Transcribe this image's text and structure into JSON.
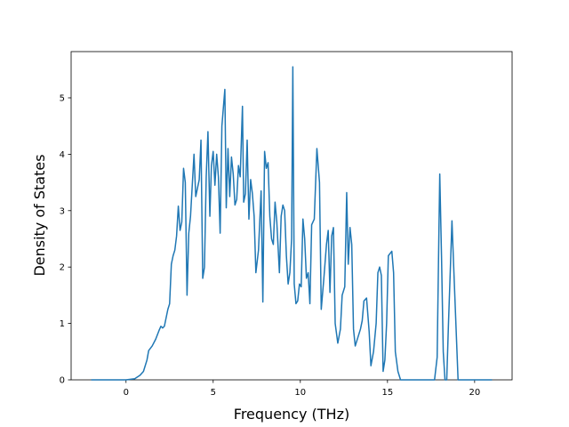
{
  "chart_data": {
    "type": "line",
    "x_label": "Frequency (THz)",
    "y_label": "Density of States",
    "xlim": [
      -3.15,
      22.15
    ],
    "ylim": [
      0,
      5.82
    ],
    "xticks": [
      0,
      5,
      10,
      15,
      20
    ],
    "yticks": [
      0,
      1,
      2,
      3,
      4,
      5
    ],
    "series": [
      {
        "color": "#1f77b4",
        "x": [
          -2,
          -1,
          0,
          0.5,
          0.8,
          1.0,
          1.2,
          1.3,
          1.5,
          1.7,
          1.9,
          2.0,
          2.1,
          2.2,
          2.3,
          2.4,
          2.5,
          2.6,
          2.7,
          2.8,
          2.9,
          3.0,
          3.1,
          3.2,
          3.3,
          3.4,
          3.5,
          3.6,
          3.7,
          3.9,
          4.0,
          4.1,
          4.2,
          4.3,
          4.4,
          4.5,
          4.6,
          4.7,
          4.81,
          4.9,
          5.0,
          5.1,
          5.2,
          5.3,
          5.4,
          5.5,
          5.67,
          5.75,
          5.85,
          5.95,
          6.05,
          6.15,
          6.25,
          6.35,
          6.45,
          6.55,
          6.68,
          6.75,
          6.85,
          6.95,
          7.05,
          7.15,
          7.25,
          7.35,
          7.45,
          7.6,
          7.75,
          7.85,
          7.95,
          8.05,
          8.15,
          8.25,
          8.35,
          8.45,
          8.55,
          8.65,
          8.8,
          8.9,
          9.0,
          9.1,
          9.2,
          9.3,
          9.4,
          9.5,
          9.57,
          9.65,
          9.75,
          9.85,
          9.95,
          10.05,
          10.15,
          10.25,
          10.35,
          10.45,
          10.55,
          10.65,
          10.8,
          10.95,
          11.1,
          11.2,
          11.35,
          11.5,
          11.6,
          11.7,
          11.8,
          11.9,
          12.0,
          12.15,
          12.3,
          12.4,
          12.55,
          12.66,
          12.75,
          12.85,
          12.95,
          13.05,
          13.15,
          13.3,
          13.45,
          13.55,
          13.65,
          13.8,
          13.95,
          14.05,
          14.2,
          14.35,
          14.45,
          14.55,
          14.65,
          14.75,
          14.85,
          14.95,
          15.05,
          15.25,
          15.35,
          15.45,
          15.6,
          15.75,
          16.5,
          17.5,
          17.7,
          17.85,
          17.95,
          18.0,
          18.1,
          18.2,
          18.3,
          18.4,
          18.5,
          18.6,
          18.7,
          18.8,
          18.95,
          19.05,
          20,
          21
        ],
        "values": [
          0,
          0,
          0,
          0.02,
          0.08,
          0.15,
          0.35,
          0.52,
          0.6,
          0.72,
          0.88,
          0.95,
          0.92,
          0.95,
          1.1,
          1.25,
          1.35,
          2.05,
          2.2,
          2.3,
          2.55,
          3.08,
          2.65,
          2.8,
          3.75,
          3.5,
          1.5,
          2.6,
          2.9,
          4.0,
          3.25,
          3.4,
          3.55,
          4.25,
          1.8,
          2.0,
          3.6,
          4.4,
          2.9,
          3.8,
          4.05,
          3.45,
          4.0,
          3.6,
          2.6,
          4.5,
          5.15,
          3.05,
          4.1,
          3.25,
          3.95,
          3.65,
          3.1,
          3.2,
          3.8,
          3.6,
          4.85,
          3.15,
          3.3,
          4.25,
          2.85,
          3.55,
          3.3,
          2.9,
          1.9,
          2.3,
          3.35,
          1.38,
          4.05,
          3.75,
          3.85,
          2.9,
          2.5,
          2.4,
          3.15,
          2.8,
          1.9,
          2.9,
          3.1,
          3.0,
          2.2,
          1.7,
          1.9,
          2.5,
          5.55,
          1.7,
          1.35,
          1.4,
          1.7,
          1.65,
          2.85,
          2.5,
          1.8,
          1.9,
          1.35,
          2.75,
          2.85,
          4.1,
          3.5,
          1.25,
          1.8,
          2.4,
          2.65,
          1.55,
          2.55,
          2.7,
          1.0,
          0.65,
          0.9,
          1.5,
          1.65,
          3.32,
          2.05,
          2.7,
          2.4,
          0.9,
          0.6,
          0.75,
          0.9,
          1.05,
          1.4,
          1.45,
          0.85,
          0.25,
          0.5,
          1.0,
          1.9,
          2.0,
          1.85,
          0.15,
          0.35,
          1.0,
          2.2,
          2.28,
          1.9,
          0.5,
          0.15,
          0,
          0,
          0,
          0,
          0.4,
          2.6,
          3.65,
          2.2,
          0.5,
          0,
          0,
          1.0,
          1.9,
          2.82,
          2.0,
          0.8,
          0,
          0,
          0
        ]
      }
    ]
  }
}
